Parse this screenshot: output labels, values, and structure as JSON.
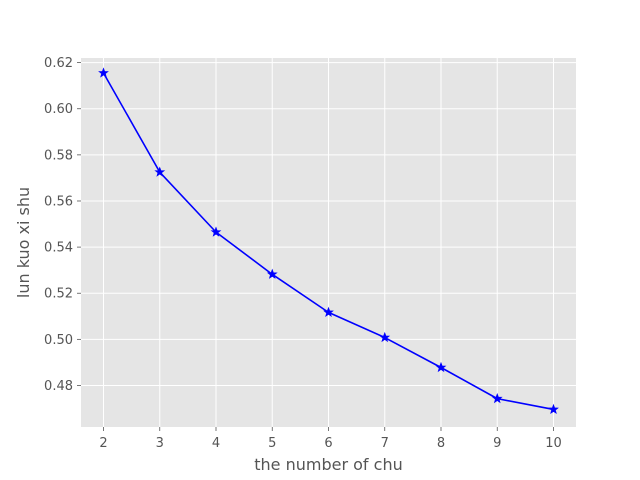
{
  "chart_data": {
    "type": "line",
    "title": "",
    "xlabel": "the number of chu",
    "ylabel": "lun kuo xi shu",
    "x": [
      2,
      3,
      4,
      5,
      6,
      7,
      8,
      9,
      10
    ],
    "series": [
      {
        "values": [
          0.6155,
          0.5725,
          0.5465,
          0.5282,
          0.5117,
          0.5008,
          0.4878,
          0.4743,
          0.4696
        ],
        "color": "#0000ff",
        "marker": "star"
      }
    ],
    "xticks": [
      "2",
      "3",
      "4",
      "5",
      "6",
      "7",
      "8",
      "9",
      "10"
    ],
    "yticks": [
      "0.48",
      "0.50",
      "0.52",
      "0.54",
      "0.56",
      "0.58",
      "0.60",
      "0.62"
    ],
    "xlim": [
      1.6,
      10.4
    ],
    "ylim": [
      0.462,
      0.622
    ],
    "grid": true,
    "style": "ggplot",
    "background_color": "#e5e5e5",
    "grid_color": "#ffffff"
  }
}
